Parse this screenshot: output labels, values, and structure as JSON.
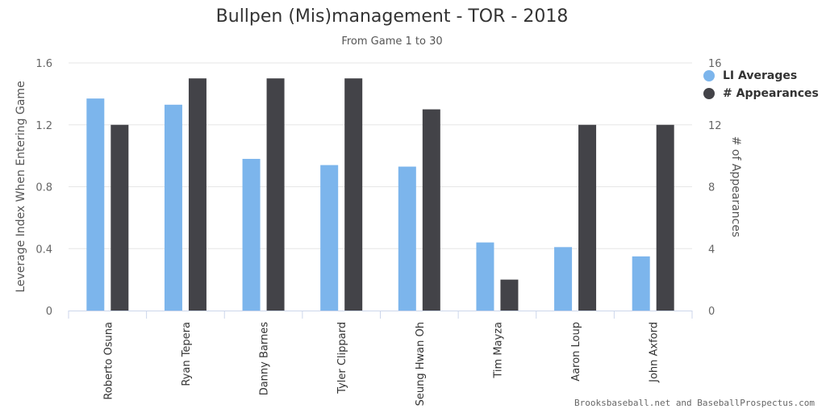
{
  "chart_data": {
    "type": "bar",
    "title": "Bullpen (Mis)management - TOR - 2018",
    "subtitle": "From Game 1 to 30",
    "categories": [
      "Roberto Osuna",
      "Ryan Tepera",
      "Danny Barnes",
      "Tyler Clippard",
      "Seung Hwan Oh",
      "Tim Mayza",
      "Aaron Loup",
      "John Axford"
    ],
    "series": [
      {
        "name": "LI Averages",
        "axis": "left",
        "color": "#7cb5ec",
        "values": [
          1.37,
          1.33,
          0.98,
          0.94,
          0.93,
          0.44,
          0.41,
          0.35
        ]
      },
      {
        "name": "# Appearances",
        "axis": "right",
        "color": "#434348",
        "values": [
          12,
          15,
          15,
          15,
          13,
          2,
          12,
          12
        ]
      }
    ],
    "y_left": {
      "label": "Leverage Index When Entering Game",
      "ylim": [
        0,
        1.6
      ],
      "ticks": [
        "0",
        "0.4",
        "0.8",
        "1.2",
        "1.6"
      ]
    },
    "y_right": {
      "label": "# of Appearances",
      "ylim": [
        0,
        16
      ],
      "ticks": [
        "0",
        "4",
        "8",
        "12",
        "16"
      ]
    },
    "grid": true,
    "legend": "top-right"
  },
  "credit": "Brooksbaseball.net and BaseballProspectus.com"
}
